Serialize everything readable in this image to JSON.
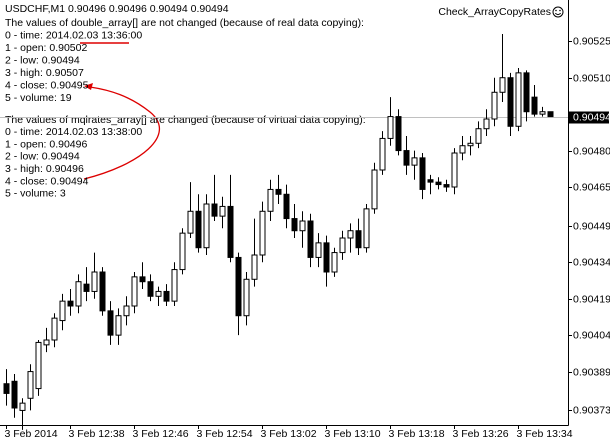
{
  "chart_data": {
    "type": "candlestick",
    "title": "USDCHF,M1  0.90496 0.90496 0.90494 0.90494",
    "expert": "Check_ArrayCopyRates",
    "annotations": [
      "The values of double_array[] are not changed (because of real data copying):",
      "0 - time: 2014.02.03 13:36:00",
      "1 - open: 0.90502",
      "2 - low: 0.90494",
      "3 - high: 0.90507",
      "4 - close: 0.90495",
      "5 - volume: 19",
      "The values of mqlrates_array[] are changed (because of virtual data copying):",
      "0 - time: 2014.02.03 13:38:00",
      "1 - open: 0.90496",
      "2 - low: 0.90494",
      "3 - high: 0.90496",
      "4 - close: 0.90494",
      "5 - volume: 3"
    ],
    "categories": [
      "3 Feb 2014",
      null,
      null,
      null,
      null,
      null,
      null,
      null,
      "3 Feb 12:38",
      null,
      null,
      null,
      null,
      null,
      null,
      null,
      "3 Feb 12:46",
      null,
      null,
      null,
      null,
      null,
      null,
      null,
      "3 Feb 12:54",
      null,
      null,
      null,
      null,
      null,
      null,
      null,
      "3 Feb 13:02",
      null,
      null,
      null,
      null,
      null,
      null,
      null,
      "3 Feb 13:10",
      null,
      null,
      null,
      null,
      null,
      null,
      null,
      "3 Feb 13:18",
      null,
      null,
      null,
      null,
      null,
      null,
      null,
      "3 Feb 13:26",
      null,
      null,
      null,
      null,
      null,
      null,
      null,
      "3 Feb 13:34",
      null,
      null,
      null,
      null
    ],
    "open": [
      0.90384,
      0.90385,
      0.90373,
      0.90378,
      0.90382,
      0.904,
      0.90402,
      0.9041,
      0.90418,
      0.90416,
      0.90425,
      0.90422,
      0.9043,
      0.90414,
      0.90404,
      0.90412,
      0.90416,
      0.90428,
      0.90426,
      0.9042,
      0.90422,
      0.90418,
      0.90431,
      0.90446,
      0.90455,
      0.9044,
      0.90458,
      0.90453,
      0.90457,
      0.90436,
      0.90412,
      0.90427,
      0.90437,
      0.90455,
      0.90464,
      0.90462,
      0.90452,
      0.90447,
      0.90451,
      0.90436,
      0.90442,
      0.9043,
      0.90438,
      0.90444,
      0.90447,
      0.9044,
      0.90456,
      0.90472,
      0.90485,
      0.90494,
      0.9048,
      0.90474,
      0.90477,
      0.90468,
      0.90467,
      0.90466,
      0.90465,
      0.90479,
      0.90482,
      0.90483,
      0.90489,
      0.90493,
      0.90504,
      0.9051,
      0.9049,
      0.90512,
      0.90502,
      0.90495,
      0.90496
    ],
    "high": [
      0.9039,
      0.90388,
      0.90378,
      0.90392,
      0.90402,
      0.90407,
      0.90413,
      0.90421,
      0.90423,
      0.90429,
      0.90432,
      0.90438,
      0.90432,
      0.90418,
      0.90415,
      0.9042,
      0.9043,
      0.90434,
      0.90429,
      0.90424,
      0.90425,
      0.90434,
      0.90448,
      0.90467,
      0.90462,
      0.90462,
      0.9047,
      0.90461,
      0.9047,
      0.90438,
      0.9043,
      0.90452,
      0.90459,
      0.90468,
      0.9047,
      0.90466,
      0.90458,
      0.90455,
      0.90454,
      0.90446,
      0.90445,
      0.9044,
      0.90447,
      0.9045,
      0.90452,
      0.90458,
      0.90475,
      0.90488,
      0.90502,
      0.90497,
      0.90486,
      0.9048,
      0.90479,
      0.9047,
      0.90469,
      0.90468,
      0.90481,
      0.90486,
      0.90486,
      0.90492,
      0.90497,
      0.9051,
      0.90528,
      0.90512,
      0.90514,
      0.90513,
      0.90507,
      0.90498,
      0.90496
    ],
    "low": [
      0.90375,
      0.9037,
      0.90365,
      0.90373,
      0.90379,
      0.90397,
      0.90399,
      0.90406,
      0.90412,
      0.90413,
      0.90418,
      0.90419,
      0.90412,
      0.904,
      0.904,
      0.90408,
      0.90413,
      0.90423,
      0.90418,
      0.90416,
      0.90416,
      0.90416,
      0.90429,
      0.90444,
      0.90438,
      0.90437,
      0.90451,
      0.90448,
      0.90434,
      0.90404,
      0.90408,
      0.90424,
      0.90434,
      0.90451,
      0.90458,
      0.90448,
      0.90444,
      0.9044,
      0.90432,
      0.90432,
      0.90424,
      0.90428,
      0.90435,
      0.90438,
      0.90437,
      0.90438,
      0.90454,
      0.9047,
      0.90482,
      0.90478,
      0.9047,
      0.90468,
      0.9046,
      0.90462,
      0.90464,
      0.90463,
      0.90462,
      0.90476,
      0.90478,
      0.90481,
      0.90486,
      0.9049,
      0.905,
      0.90486,
      0.90488,
      0.90492,
      0.90494,
      0.90494,
      0.90494
    ],
    "close": [
      0.9038,
      0.90374,
      0.90376,
      0.90389,
      0.90401,
      0.90402,
      0.90411,
      0.90418,
      0.90416,
      0.90426,
      0.90422,
      0.9043,
      0.90414,
      0.90404,
      0.90412,
      0.90416,
      0.90428,
      0.90426,
      0.9042,
      0.90422,
      0.90418,
      0.90431,
      0.90446,
      0.90455,
      0.9044,
      0.90458,
      0.90453,
      0.90457,
      0.90436,
      0.90412,
      0.90427,
      0.90437,
      0.90455,
      0.90464,
      0.90462,
      0.90452,
      0.90447,
      0.90451,
      0.90436,
      0.90442,
      0.9043,
      0.90438,
      0.90444,
      0.90447,
      0.9044,
      0.90456,
      0.90472,
      0.90485,
      0.90494,
      0.9048,
      0.90474,
      0.90477,
      0.90464,
      0.90467,
      0.90466,
      0.90465,
      0.90479,
      0.90482,
      0.90483,
      0.90489,
      0.90493,
      0.90504,
      0.9051,
      0.9049,
      0.90512,
      0.90496,
      0.90495,
      0.90496,
      0.90494
    ],
    "up_color": "#ffffff",
    "down_color": "#000000",
    "bid": 0.90494,
    "ylim": [
      0.90367,
      0.90542
    ],
    "yticks": [
      0.90525,
      {
        "value": 0.9051,
        "label": "0.90510"
      },
      {
        "value": 0.9048,
        "label": "0.90480"
      },
      0.90465,
      0.90449,
      0.90434,
      0.90419,
      0.90404,
      0.90389,
      0.90373
    ]
  }
}
